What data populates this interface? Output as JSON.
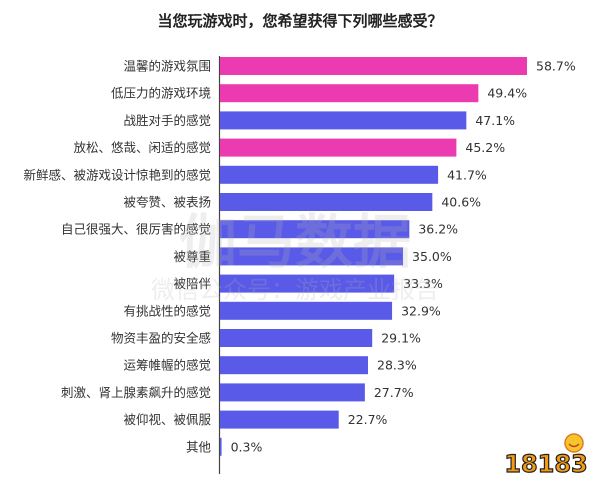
{
  "chart_data": {
    "type": "bar",
    "orientation": "horizontal",
    "title": "当您玩游戏时，您希望获得下列哪些感受？",
    "categories": [
      "温馨的游戏氛围",
      "低压力的游戏环境",
      "战胜对手的感觉",
      "放松、悠哉、闲适的感觉",
      "新鲜感、被游戏设计惊艳到的感觉",
      "被夸赞、被表扬",
      "自己很强大、很厉害的感觉",
      "被尊重",
      "被陪伴",
      "有挑战性的感觉",
      "物资丰盈的安全感",
      "运筹帷幄的感觉",
      "刺激、肾上腺素飙升的感觉",
      "被仰视、被佩服",
      "其他"
    ],
    "values": [
      58.7,
      49.4,
      47.1,
      45.2,
      41.7,
      40.6,
      36.2,
      35.0,
      33.3,
      32.9,
      29.1,
      28.3,
      27.7,
      22.7,
      0.3
    ],
    "value_labels": [
      "58.7%",
      "49.4%",
      "47.1%",
      "45.2%",
      "41.7%",
      "40.6%",
      "36.2%",
      "35.0%",
      "33.3%",
      "32.9%",
      "29.1%",
      "28.3%",
      "27.7%",
      "22.7%",
      "0.3%"
    ],
    "highlight": [
      true,
      true,
      false,
      true,
      false,
      false,
      false,
      false,
      false,
      false,
      false,
      false,
      false,
      false,
      false
    ],
    "xlim": [
      0,
      60
    ],
    "grid": false,
    "legend": "none"
  },
  "colors": {
    "highlight": "#ec3ab0",
    "normal": "#5a5ae8",
    "text": "#333333",
    "title": "#222222",
    "axis": "#444444"
  },
  "watermark": {
    "line1": "伽马数据",
    "line2": "微信公众号：游戏产业报告"
  },
  "logo": {
    "text": "18183"
  }
}
